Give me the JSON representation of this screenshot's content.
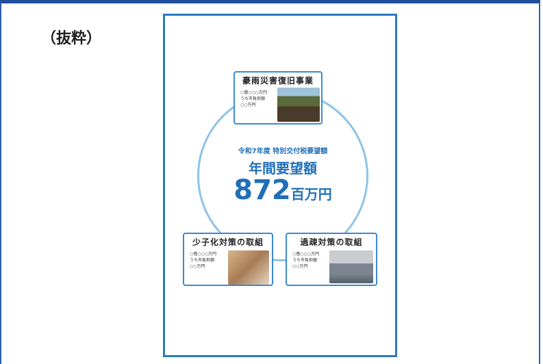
{
  "label": "（抜粋）",
  "document": {
    "center": {
      "subtitle": "令和7年度 特別交付税要望額",
      "title": "年間要望額",
      "amount": "872",
      "unit": "百万円"
    },
    "boxes": [
      {
        "title": "豪雨災害復旧事業",
        "lines": [
          "○億○○○万円",
          "うち市負担額",
          "○○万円"
        ]
      },
      {
        "title": "少子化対策の取組",
        "lines": [
          "○億○○○万円",
          "うち市負担額",
          "○○万円"
        ]
      },
      {
        "title": "過疎対策の取組",
        "lines": [
          "○億○○○万円",
          "うち市負担額",
          "○○万円"
        ]
      }
    ]
  }
}
